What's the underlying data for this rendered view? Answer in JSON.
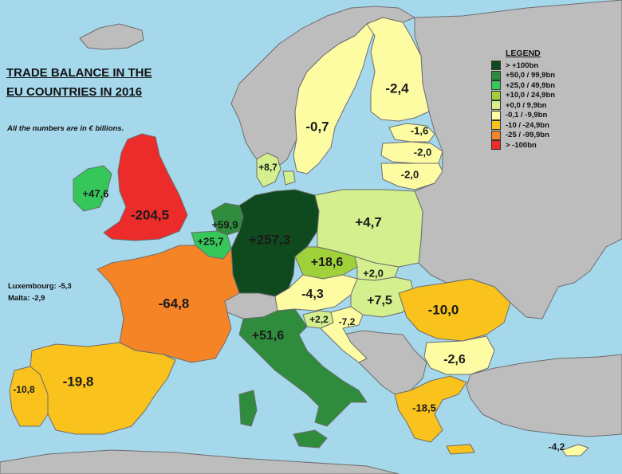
{
  "title_lines": [
    "TRADE BALANCE IN THE",
    "EU COUNTRIES IN 2016"
  ],
  "subtitle": "All the numbers are in € billions.",
  "notes": [
    "Luxembourg: -5,3",
    "Malta: -2,9"
  ],
  "legend": {
    "title": "LEGEND",
    "items": [
      {
        "label": "> +100bn",
        "color": "#0f4a1f"
      },
      {
        "label": "+50,0 / 99,9bn",
        "color": "#2e8c3c"
      },
      {
        "label": "+25,0 / 49,9bn",
        "color": "#35c75a"
      },
      {
        "label": "+10,0 / 24,9bn",
        "color": "#9fd23a"
      },
      {
        "label": "+0,0 / 9,9bn",
        "color": "#d4ef8e"
      },
      {
        "label": "-0,1 / -9,9bn",
        "color": "#fdfca3"
      },
      {
        "label": "-10 / -24,9bn",
        "color": "#f9c21c"
      },
      {
        "label": "-25 / -99,9bn",
        "color": "#f58427"
      },
      {
        "label": "> -100bn",
        "color": "#ec2b2b"
      }
    ]
  },
  "colors": {
    "sea": "#a6d8ec",
    "non_eu": "#bdbdbd",
    "border": "#6d6d6d"
  },
  "countries": [
    {
      "id": "sweden",
      "value": "-0,7",
      "category": 5
    },
    {
      "id": "finland",
      "value": "-2,4",
      "category": 5
    },
    {
      "id": "estonia",
      "value": "-1,6",
      "category": 5
    },
    {
      "id": "latvia",
      "value": "-2,0",
      "category": 5
    },
    {
      "id": "lithuania",
      "value": "-2,0",
      "category": 5
    },
    {
      "id": "denmark",
      "value": "+8,7",
      "category": 4
    },
    {
      "id": "ireland",
      "value": "+47,6",
      "category": 2
    },
    {
      "id": "uk",
      "value": "-204,5",
      "category": 8
    },
    {
      "id": "netherlands",
      "value": "+59,9",
      "category": 1
    },
    {
      "id": "belgium",
      "value": "+25,7",
      "category": 2
    },
    {
      "id": "germany",
      "value": "+257,3",
      "category": 0
    },
    {
      "id": "poland",
      "value": "+4,7",
      "category": 4
    },
    {
      "id": "czechia",
      "value": "+18,6",
      "category": 3
    },
    {
      "id": "slovakia",
      "value": "+2,0",
      "category": 4
    },
    {
      "id": "austria",
      "value": "-4,3",
      "category": 5
    },
    {
      "id": "hungary",
      "value": "+7,5",
      "category": 4
    },
    {
      "id": "slovenia",
      "value": "+2,2",
      "category": 4
    },
    {
      "id": "croatia",
      "value": "-7,2",
      "category": 5
    },
    {
      "id": "romania",
      "value": "-10,0",
      "category": 6
    },
    {
      "id": "bulgaria",
      "value": "-2,6",
      "category": 5
    },
    {
      "id": "greece",
      "value": "-18,5",
      "category": 6
    },
    {
      "id": "cyprus",
      "value": "-4,2",
      "category": 5
    },
    {
      "id": "france",
      "value": "-64,8",
      "category": 7
    },
    {
      "id": "italy",
      "value": "+51,6",
      "category": 1
    },
    {
      "id": "spain",
      "value": "-19,8",
      "category": 6
    },
    {
      "id": "portugal",
      "value": "-10,8",
      "category": 6
    }
  ]
}
